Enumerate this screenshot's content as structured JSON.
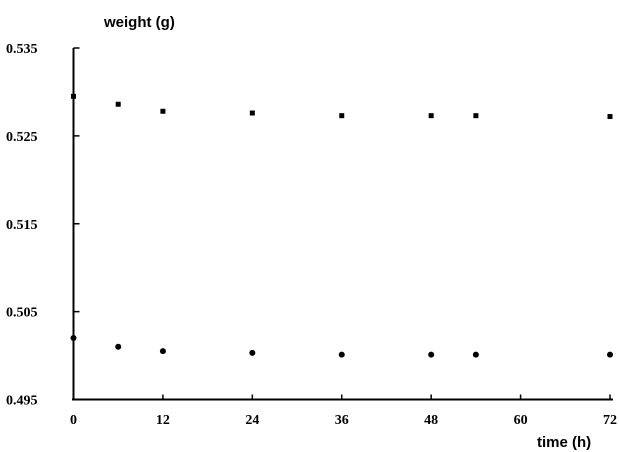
{
  "chart_data": {
    "type": "scatter",
    "title": "",
    "xlabel": "time (h)",
    "ylabel": "weight (g)",
    "xlim": [
      0,
      72
    ],
    "ylim": [
      0.495,
      0.535
    ],
    "x_ticks": [
      0,
      12,
      24,
      36,
      48,
      60,
      72
    ],
    "x_tick_labels": [
      "0",
      "12",
      "24",
      "36",
      "48",
      "60",
      "72"
    ],
    "y_ticks": [
      0.495,
      0.505,
      0.515,
      0.525,
      0.535
    ],
    "y_tick_labels": [
      "0.495",
      "0.505",
      "0.515",
      "0.525",
      "0.535"
    ],
    "grid": false,
    "series": [
      {
        "marker": "square",
        "x": [
          0,
          6,
          12,
          24,
          36,
          48,
          54,
          72
        ],
        "y": [
          0.5295,
          0.5286,
          0.5278,
          0.5276,
          0.5273,
          0.5273,
          0.5273,
          0.5272
        ]
      },
      {
        "marker": "circle",
        "x": [
          0,
          6,
          12,
          24,
          36,
          48,
          54,
          72
        ],
        "y": [
          0.502,
          0.501,
          0.5005,
          0.5003,
          0.5001,
          0.5001,
          0.5001,
          0.5001
        ]
      }
    ]
  }
}
